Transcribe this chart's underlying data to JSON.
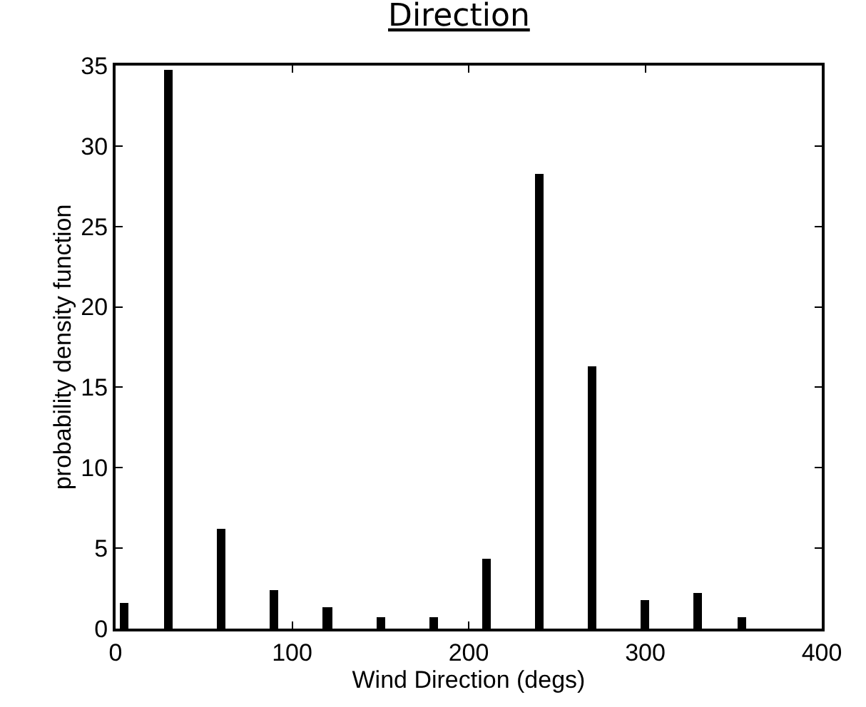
{
  "chart_data": {
    "type": "bar",
    "title": "Direction",
    "xlabel": "Wind Direction (degs)",
    "ylabel": "probability density function",
    "x": [
      5,
      30,
      60,
      90,
      120,
      150,
      180,
      210,
      240,
      270,
      300,
      330,
      355
    ],
    "values": [
      1.6,
      34.7,
      6.2,
      2.4,
      1.3,
      0.7,
      0.7,
      4.3,
      28.3,
      16.3,
      1.8,
      2.2,
      0.7
    ],
    "color": "#000000",
    "xlim": [
      0,
      400
    ],
    "xticks": [
      0,
      100,
      200,
      300,
      400
    ],
    "ylim": [
      0,
      35
    ],
    "yticks": [
      0,
      5,
      10,
      15,
      20,
      25,
      30,
      35
    ],
    "grid": false,
    "legend": false
  }
}
